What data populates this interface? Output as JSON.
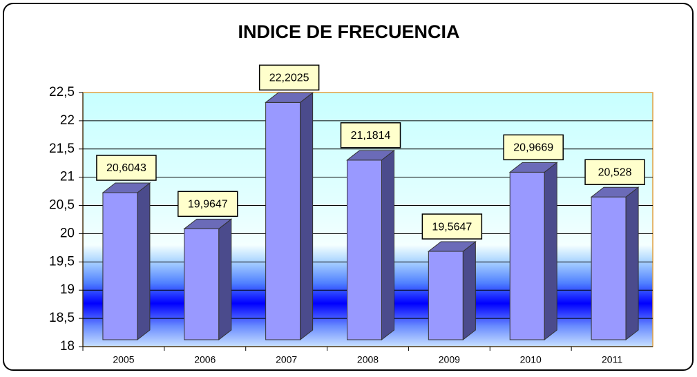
{
  "chart_data": {
    "type": "bar3d",
    "title": "INDICE DE FRECUENCIA",
    "categories": [
      "2005",
      "2006",
      "2007",
      "2008",
      "2009",
      "2010",
      "2011"
    ],
    "values": [
      20.6043,
      19.9647,
      22.2025,
      21.1814,
      19.5647,
      20.9669,
      20.528
    ],
    "value_labels": [
      "20,6043",
      "19,9647",
      "22,2025",
      "21,1814",
      "19,5647",
      "20,9669",
      "20,528"
    ],
    "color": "#9999ff",
    "ylim": [
      18,
      22.5
    ],
    "yticks": [
      18,
      {
        "value": 18.5,
        "label": "18,5"
      },
      19,
      {
        "value": 19.5,
        "label": "19,5"
      },
      20,
      {
        "value": 20.5,
        "label": "20,5"
      },
      21,
      {
        "value": 21.5,
        "label": "21,5"
      },
      22,
      {
        "value": 22.5,
        "label": "22,5"
      }
    ],
    "grid": true
  }
}
